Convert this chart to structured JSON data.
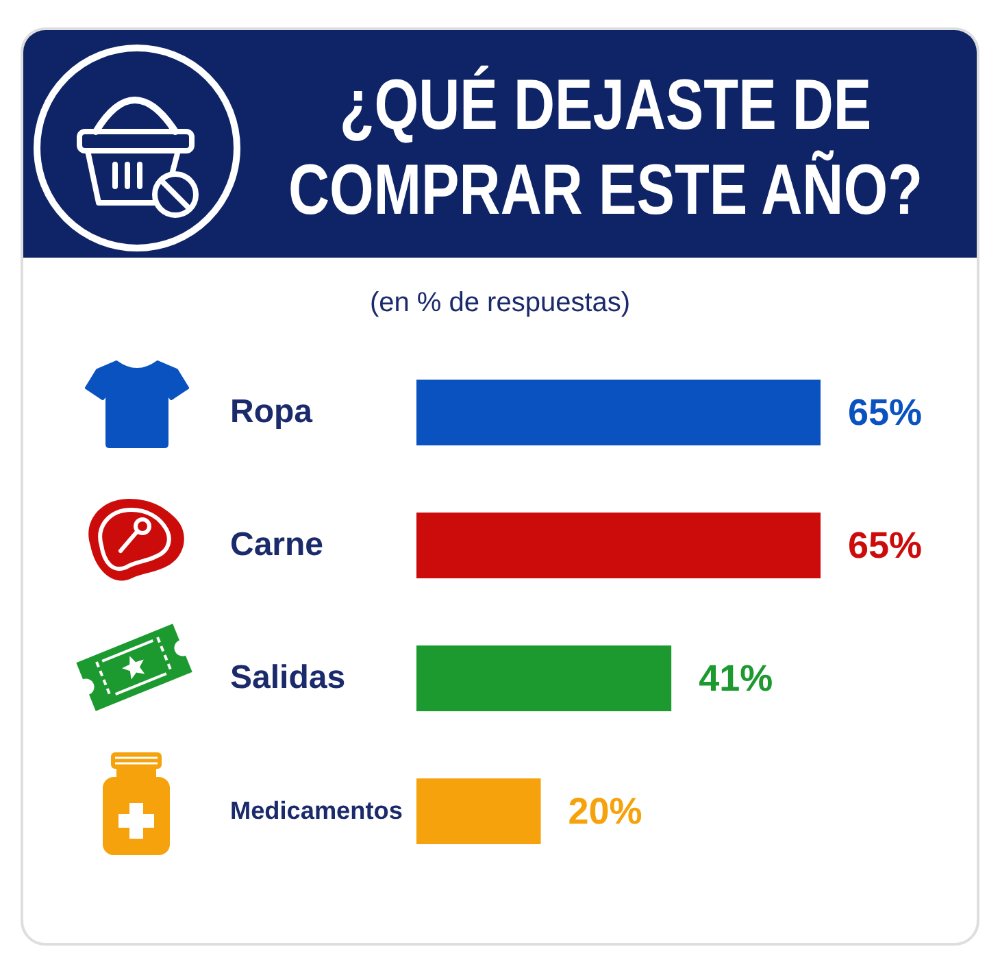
{
  "chart_data": {
    "type": "bar",
    "orientation": "horizontal",
    "title": "¿QUÉ DEJASTE DE COMPRAR ESTE AÑO?",
    "subtitle": "(en % de respuestas)",
    "categories": [
      "Ropa",
      "Carne",
      "Salidas",
      "Medicamentos"
    ],
    "values": [
      65,
      65,
      41,
      20
    ],
    "colors": [
      "#0a52bf",
      "#cc0b0b",
      "#1c9a30",
      "#f5a20c"
    ],
    "value_labels": [
      "65%",
      "65%",
      "41%",
      "20%"
    ],
    "tick_labels": "y"
  }
}
